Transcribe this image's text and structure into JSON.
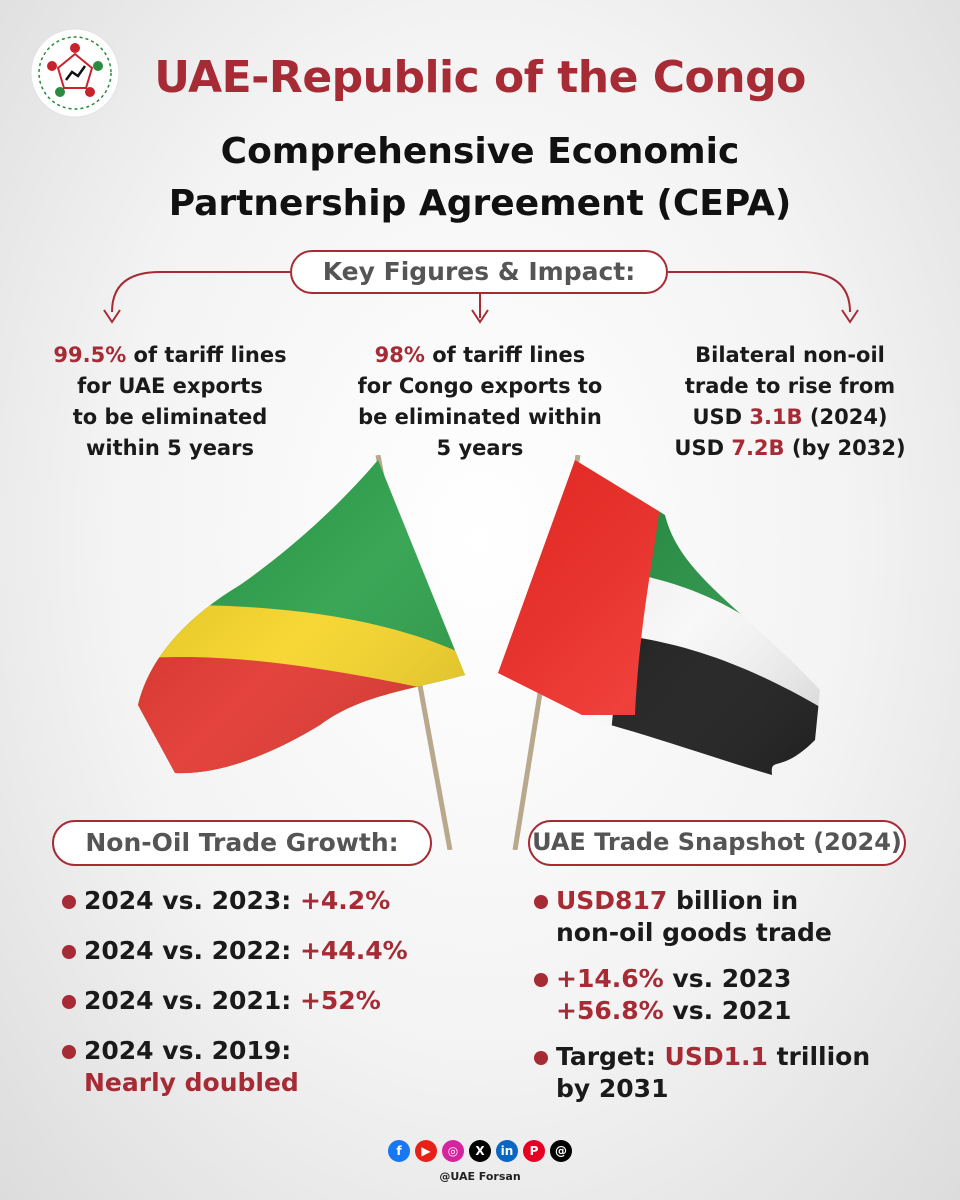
{
  "header": {
    "title": "UAE-Republic of the Congo",
    "subtitle_line1": "Comprehensive Economic",
    "subtitle_line2": "Partnership Agreement (CEPA)"
  },
  "key_figures": {
    "heading": "Key Figures & Impact:",
    "items": [
      {
        "highlight": "99.5%",
        "text_after_highlight": " of tariff lines",
        "rest_lines": [
          "for UAE exports",
          "to be eliminated",
          "within 5 years"
        ]
      },
      {
        "highlight": "98%",
        "text_after_highlight": " of tariff lines",
        "rest_lines": [
          "for Congo exports to",
          "be eliminated within",
          "5 years"
        ]
      },
      {
        "line1": "Bilateral non-oil",
        "line2": "trade to rise from",
        "line3_prefix": "USD ",
        "line3_value": "3.1B",
        "line3_suffix": " (2024)",
        "line4_prefix": "USD ",
        "line4_value": "7.2B",
        "line4_suffix": " (by 2032)"
      }
    ]
  },
  "growth": {
    "heading": "Non-Oil Trade Growth:",
    "items": [
      {
        "label": "2024 vs. 2023: ",
        "value": "+4.2%"
      },
      {
        "label": "2024 vs. 2022: ",
        "value": "+44.4%"
      },
      {
        "label": "2024 vs. 2021: ",
        "value": "+52%"
      },
      {
        "label": "2024 vs. 2019:",
        "value": "Nearly doubled"
      }
    ]
  },
  "snapshot": {
    "heading": "UAE Trade Snapshot (2024)",
    "item1": {
      "value": "USD817",
      "text": " billion in",
      "line2": "non-oil goods trade"
    },
    "item2": {
      "value1": "+14.6%",
      "text1": " vs. 2023",
      "value2": "+56.8%",
      "text2": " vs. 2021"
    },
    "item3": {
      "prefix": "Target: ",
      "value": "USD1.1",
      "text": " trillion",
      "line2": "by 2031"
    }
  },
  "footer": {
    "handle": "@UAE Forsan",
    "social_icons": [
      {
        "name": "facebook-icon",
        "glyph": "f",
        "color": "#1877f2"
      },
      {
        "name": "youtube-icon",
        "glyph": "▶",
        "color": "#e62117"
      },
      {
        "name": "instagram-icon",
        "glyph": "◎",
        "color": "#d6249f"
      },
      {
        "name": "x-icon",
        "glyph": "X",
        "color": "#000000"
      },
      {
        "name": "linkedin-icon",
        "glyph": "in",
        "color": "#0a66c2"
      },
      {
        "name": "pinterest-icon",
        "glyph": "P",
        "color": "#e60023"
      },
      {
        "name": "threads-icon",
        "glyph": "@",
        "color": "#000000"
      }
    ]
  },
  "colors": {
    "accent": "#a72b35",
    "congo_green": "#1f9a3f",
    "congo_yellow": "#f5d21b",
    "congo_red": "#e02a23",
    "uae_red": "#ee2a24",
    "uae_green": "#1f8a3c",
    "uae_white": "#ffffff",
    "uae_black": "#111111"
  }
}
